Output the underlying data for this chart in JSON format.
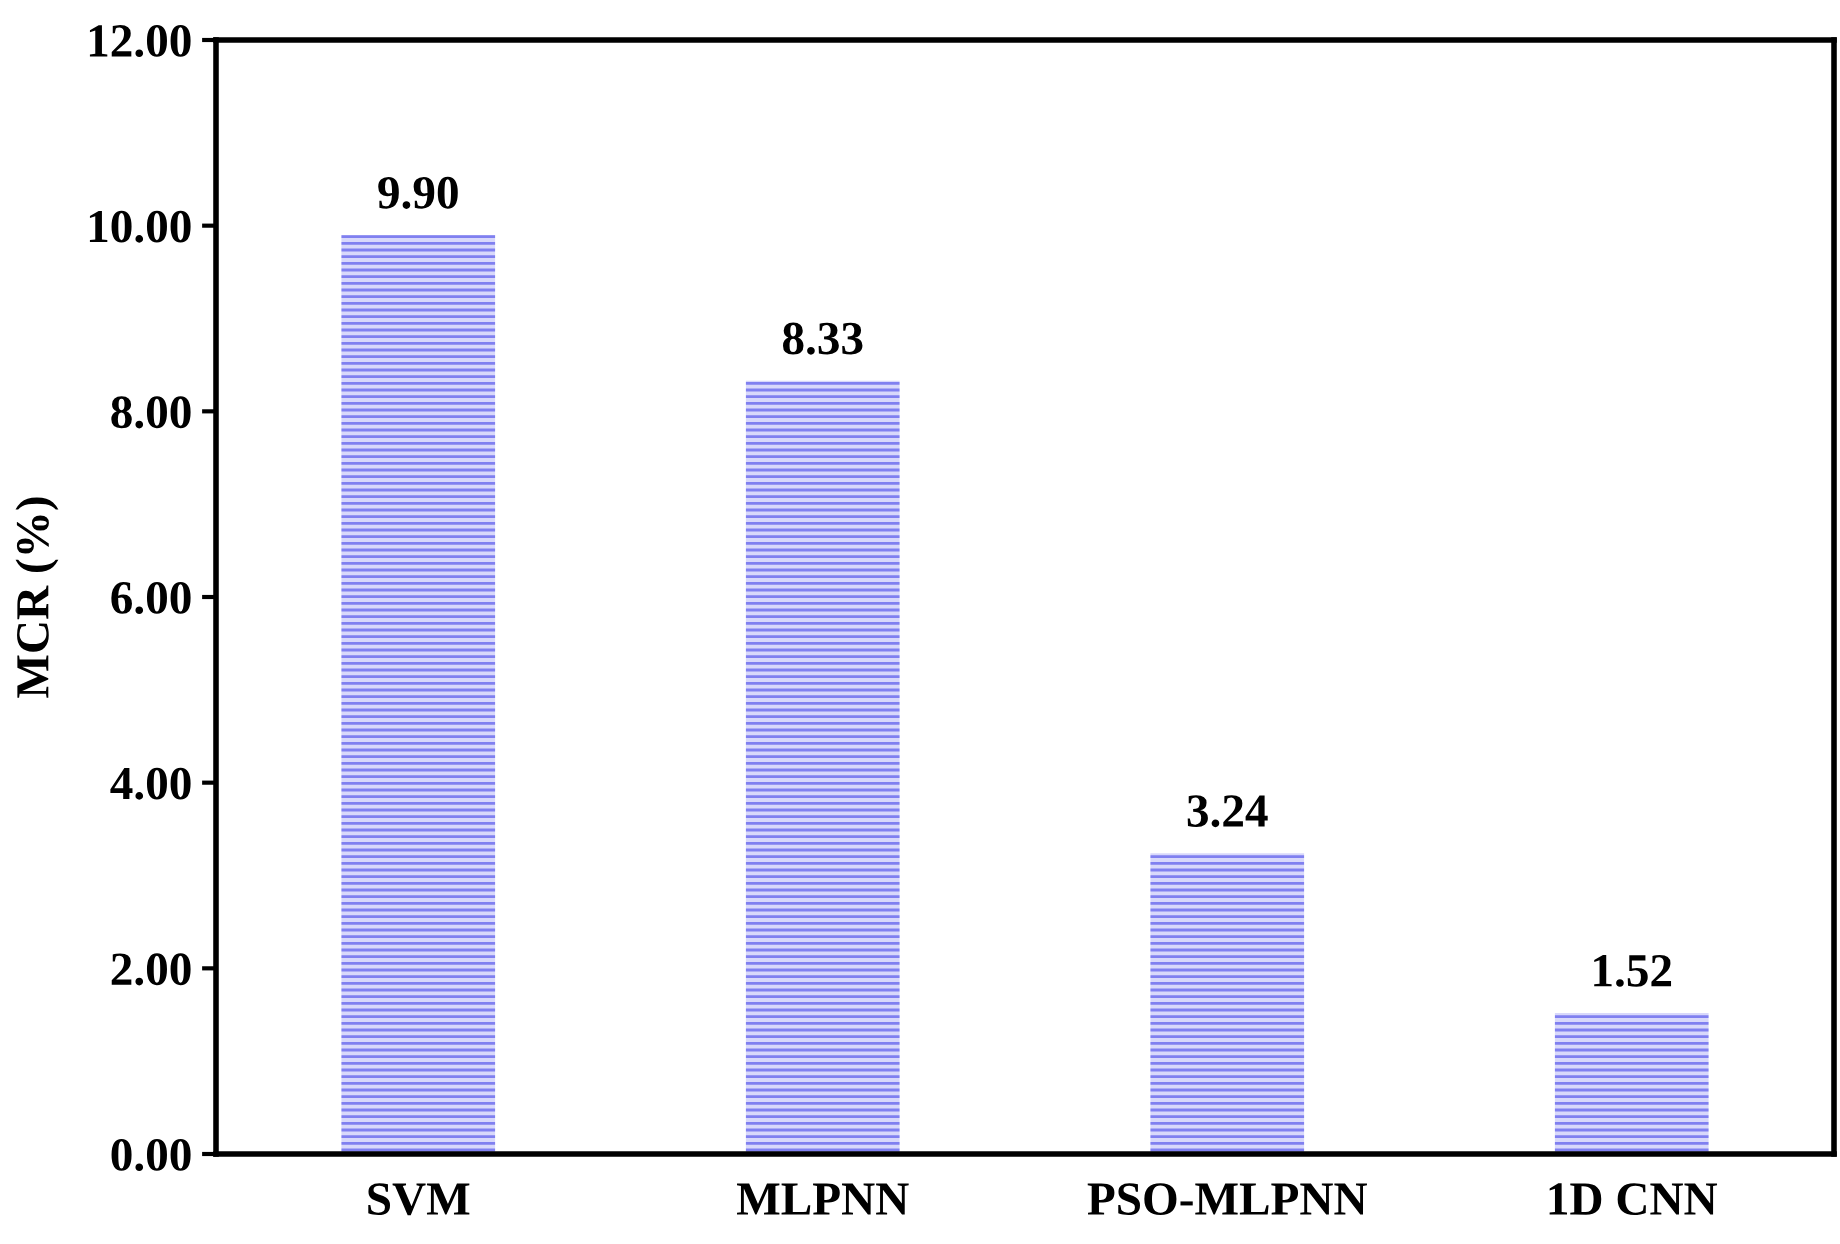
{
  "chart_data": {
    "type": "bar",
    "ylabel": "MCR (%)",
    "categories": [
      "SVM",
      "MLPNN",
      "PSO-MLPNN",
      "1D CNN"
    ],
    "values": [
      9.9,
      8.33,
      3.24,
      1.52
    ],
    "color": "#8080f0",
    "value_labels": [
      "9.90",
      "8.33",
      "3.24",
      "1.52"
    ],
    "ylim": [
      0,
      12
    ],
    "yticks": [
      {
        "value": 0,
        "label": "0.00"
      },
      {
        "value": 2,
        "label": "2.00"
      },
      {
        "value": 4,
        "label": "4.00"
      },
      {
        "value": 6,
        "label": "6.00"
      },
      {
        "value": 8,
        "label": "8.00"
      },
      {
        "value": 10,
        "label": "10.00"
      },
      {
        "value": 12,
        "label": "12.00"
      }
    ],
    "grid": false
  }
}
